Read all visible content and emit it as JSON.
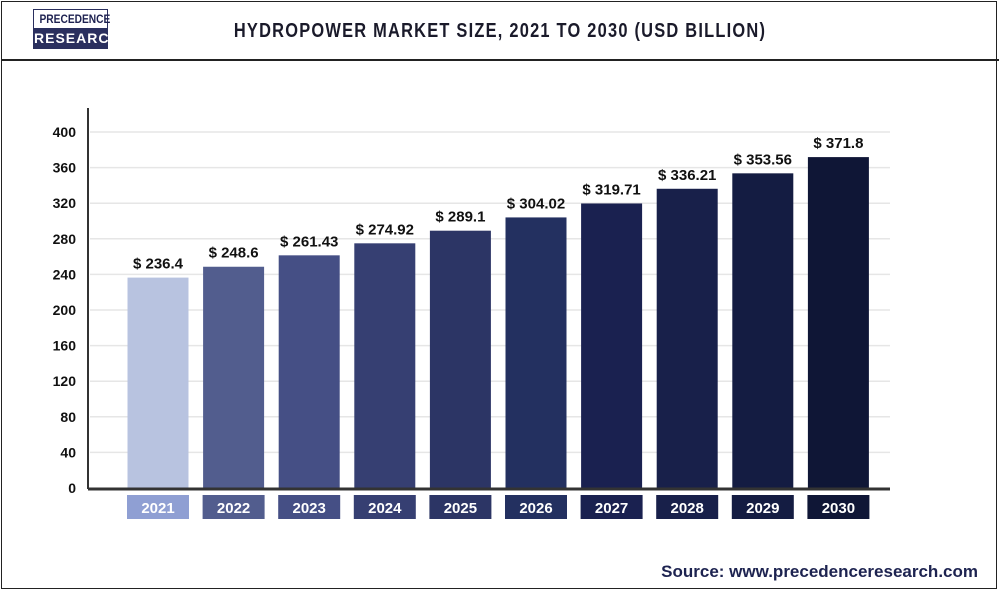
{
  "header": {
    "logo_top": "PRECEDENCE",
    "logo_bottom": "RESEARCH",
    "title": "HYDROPOWER MARKET SIZE, 2021 TO 2030 (USD BILLION)"
  },
  "source": "Source: www.precedenceresearch.com",
  "chart_data": {
    "type": "bar",
    "title": "HYDROPOWER MARKET SIZE, 2021 TO 2030 (USD BILLION)",
    "categories": [
      "2021",
      "2022",
      "2023",
      "2024",
      "2025",
      "2026",
      "2027",
      "2028",
      "2029",
      "2030"
    ],
    "values": [
      236.4,
      248.6,
      261.43,
      274.92,
      289.1,
      304.02,
      319.71,
      336.21,
      353.56,
      371.8
    ],
    "data_labels": [
      "$ 236.4",
      "$ 248.6",
      "$ 261.43",
      "$ 274.92",
      "$ 289.1",
      "$ 304.02",
      "$ 319.71",
      "$ 336.21",
      "$ 353.56",
      "$ 371.8"
    ],
    "yticks": [
      0,
      40,
      80,
      120,
      160,
      200,
      240,
      280,
      320,
      360,
      400
    ],
    "ylim": [
      0,
      400
    ],
    "grid": true,
    "bar_colors": [
      "#b8c3e0",
      "#525d8e",
      "#454f85",
      "#363f72",
      "#2c3565",
      "#233060",
      "#1a2150",
      "#18204a",
      "#141c42",
      "#0f1636"
    ],
    "label_box_colors": [
      "#8f9fd3",
      "#525d8e",
      "#454f85",
      "#363f72",
      "#2c3565",
      "#233060",
      "#1a2150",
      "#18204a",
      "#141c42",
      "#0f1636"
    ]
  }
}
